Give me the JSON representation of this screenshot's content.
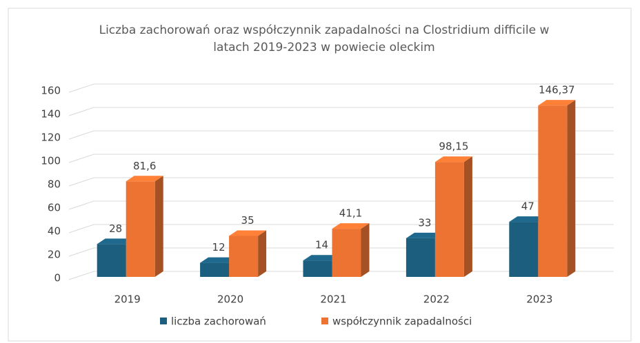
{
  "chart_data": {
    "type": "bar3d",
    "title": "Liczba zachorowań oraz współczynnik zapadalności na Clostridium difficile w latach 2019-2023 w powiecie oleckim",
    "categories": [
      "2019",
      "2020",
      "2021",
      "2022",
      "2023"
    ],
    "series": [
      {
        "name": "liczba zachorowań",
        "color": "#1b5e7e",
        "values": [
          28,
          12,
          14,
          33,
          47
        ]
      },
      {
        "name": "współczynnik zapadalności",
        "color": "#ec7332",
        "values": [
          81.6,
          35,
          41.1,
          98.15,
          146.37
        ],
        "value_labels": [
          "81,6",
          "35",
          "41,1",
          "98,15",
          "146,37"
        ]
      }
    ],
    "ylim": [
      0,
      160
    ],
    "yticks": [
      0,
      20,
      40,
      60,
      80,
      100,
      120,
      140,
      160
    ],
    "grid": true,
    "legend": "bottom"
  }
}
